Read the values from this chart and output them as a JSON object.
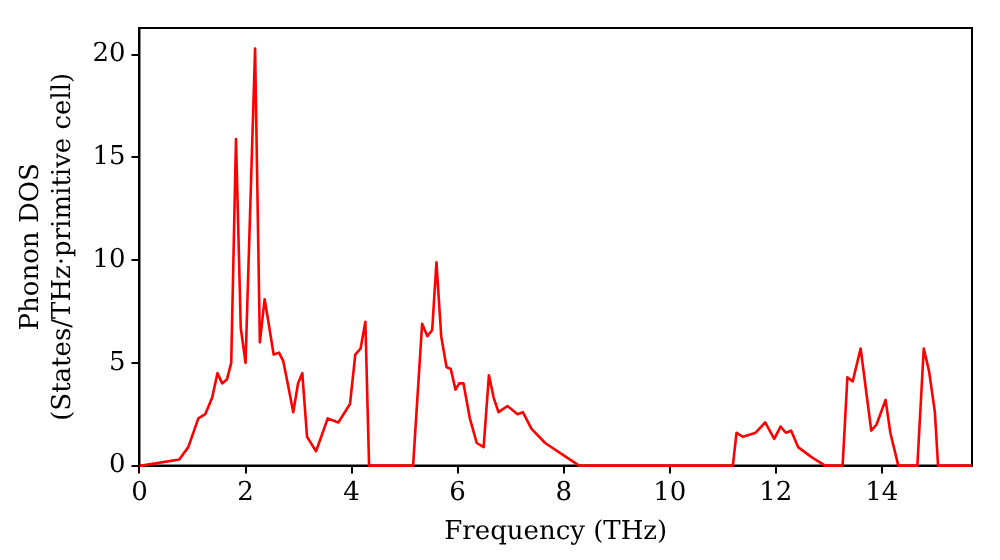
{
  "chart_data": {
    "type": "line",
    "xlabel": "Frequency (THz)",
    "ylabel": "Phonon DOS\n(States/THz·primitive cell)",
    "xlim": [
      0,
      15.7
    ],
    "ylim": [
      0,
      21.3
    ],
    "xticks": [
      0,
      2,
      4,
      6,
      8,
      10,
      12,
      14
    ],
    "yticks": [
      0,
      5,
      10,
      15,
      20
    ],
    "grid": false,
    "legend": false,
    "marker": "none",
    "line_style": "solid",
    "series": [
      {
        "color": "#ff0000",
        "x": [
          0,
          0.04,
          0.75,
          0.92,
          1.11,
          1.24,
          1.37,
          1.47,
          1.56,
          1.65,
          1.73,
          1.82,
          1.91,
          2.0,
          2.18,
          2.27,
          2.36,
          2.45,
          2.53,
          2.63,
          2.71,
          2.81,
          2.9,
          2.99,
          3.07,
          3.16,
          3.33,
          3.55,
          3.75,
          3.97,
          4.07,
          4.17,
          4.26,
          4.33,
          5.16,
          5.33,
          5.43,
          5.52,
          5.6,
          5.69,
          5.79,
          5.87,
          5.96,
          6.03,
          6.11,
          6.23,
          6.36,
          6.49,
          6.59,
          6.68,
          6.77,
          6.94,
          7.13,
          7.23,
          7.39,
          7.65,
          8.0,
          8.29,
          11.19,
          11.26,
          11.38,
          11.62,
          11.8,
          11.97,
          12.09,
          12.19,
          12.29,
          12.42,
          12.68,
          12.93,
          13.26,
          13.35,
          13.45,
          13.6,
          13.8,
          13.9,
          14.07,
          14.16,
          14.31,
          14.67,
          14.79,
          14.89,
          15.0,
          15.06,
          15.7
        ],
        "values": [
          0,
          0,
          0.3,
          0.9,
          2.3,
          2.5,
          3.3,
          4.5,
          4.0,
          4.2,
          5.0,
          15.9,
          6.7,
          5.0,
          20.3,
          6.0,
          8.1,
          6.7,
          5.4,
          5.5,
          5.1,
          3.8,
          2.6,
          4.0,
          4.5,
          1.4,
          0.7,
          2.3,
          2.1,
          3.0,
          5.4,
          5.7,
          7.0,
          0,
          0,
          6.9,
          6.3,
          6.6,
          9.9,
          6.3,
          4.8,
          4.7,
          3.7,
          4.0,
          4.0,
          2.3,
          1.1,
          0.9,
          4.4,
          3.3,
          2.6,
          2.9,
          2.5,
          2.6,
          1.8,
          1.1,
          0.5,
          0,
          0,
          1.6,
          1.4,
          1.6,
          2.1,
          1.3,
          1.9,
          1.6,
          1.7,
          0.9,
          0.4,
          0,
          0,
          4.3,
          4.1,
          5.7,
          1.7,
          2.0,
          3.2,
          1.6,
          0,
          0,
          5.7,
          4.6,
          2.6,
          0,
          0
        ]
      }
    ]
  }
}
